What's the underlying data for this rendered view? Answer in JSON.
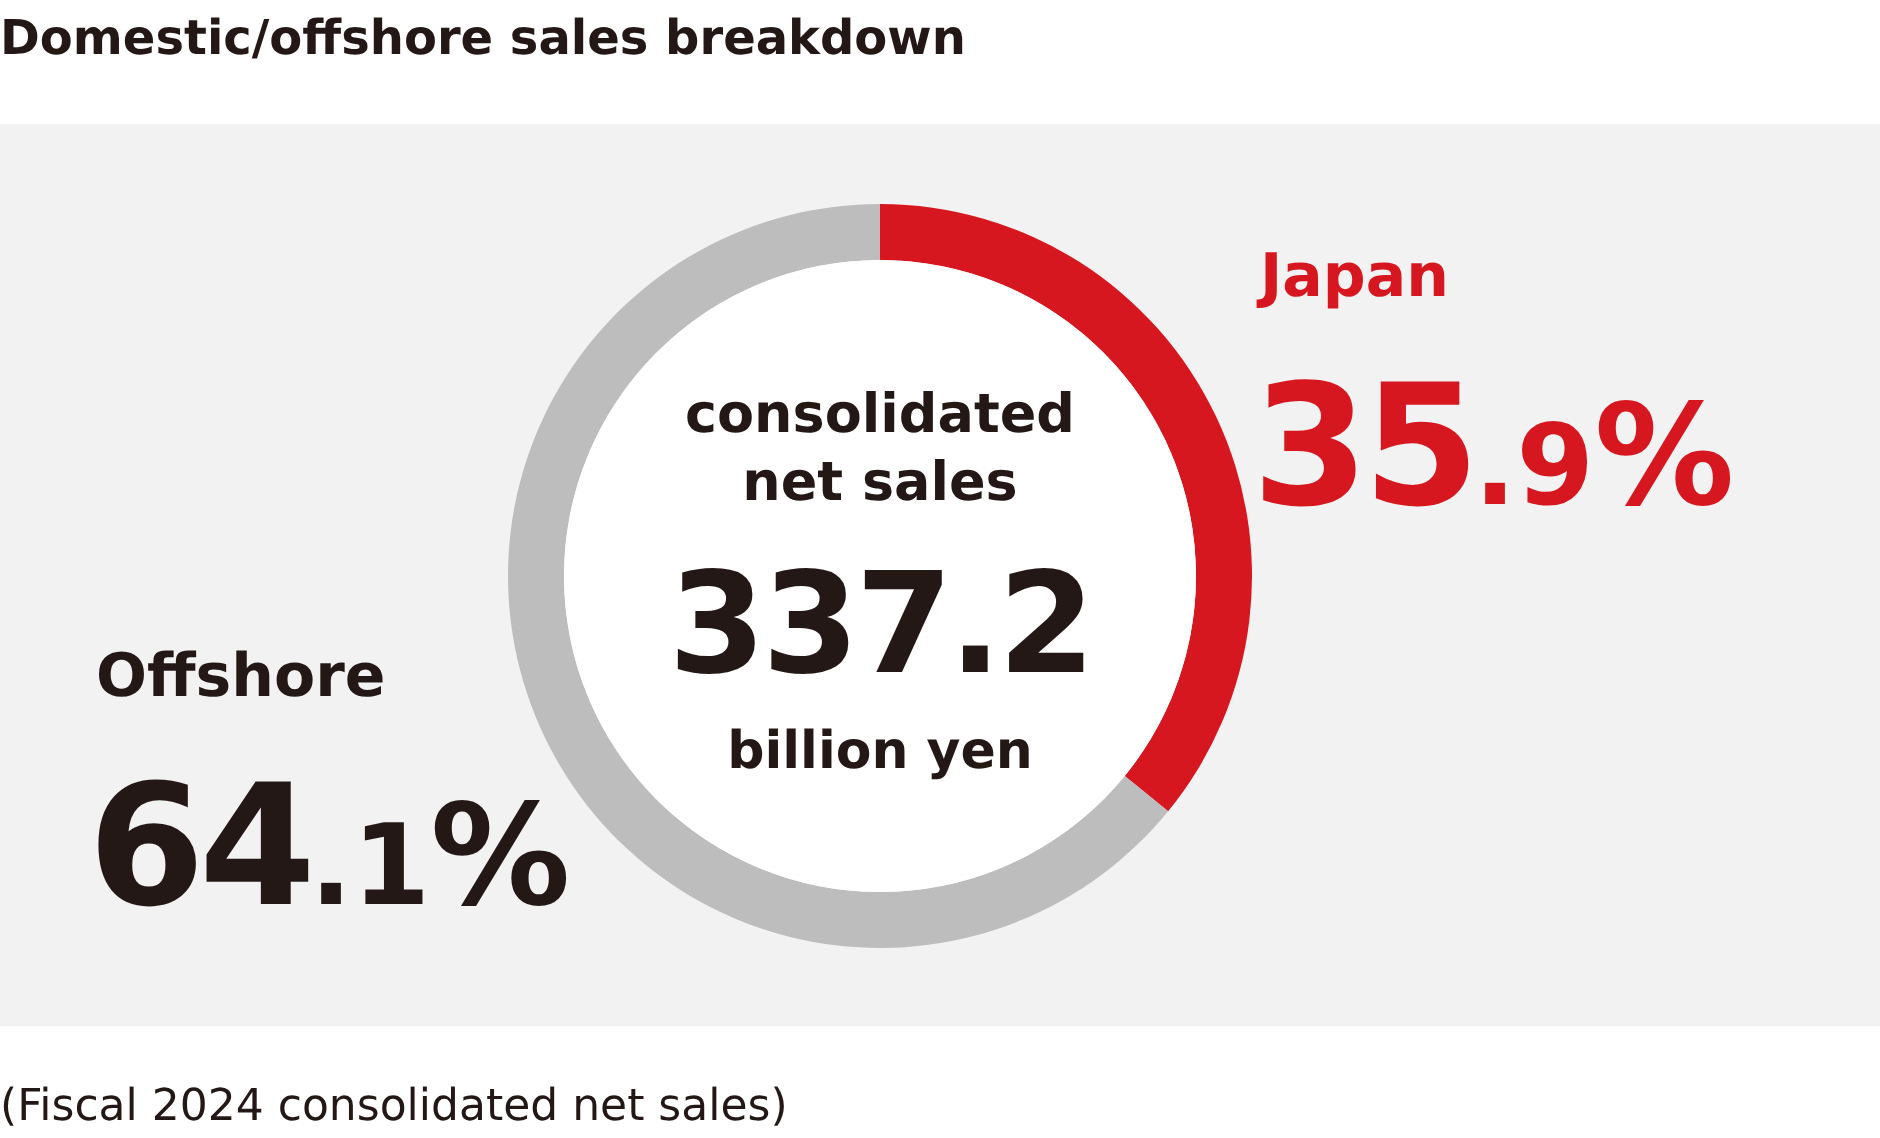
{
  "chart_data": {
    "type": "donut",
    "title": "Domestic/offshore sales breakdown",
    "categories": [
      "Japan",
      "Offshore"
    ],
    "values": [
      35.9,
      64.1
    ],
    "colors": [
      "#d7171f",
      "#bdbdbd"
    ],
    "value_labels": [
      "35.9%",
      "64.1%"
    ],
    "annotations": [
      "consolidated net sales",
      "337.2",
      "billion yen",
      "(Fiscal 2024 consolidated net sales)"
    ]
  }
}
